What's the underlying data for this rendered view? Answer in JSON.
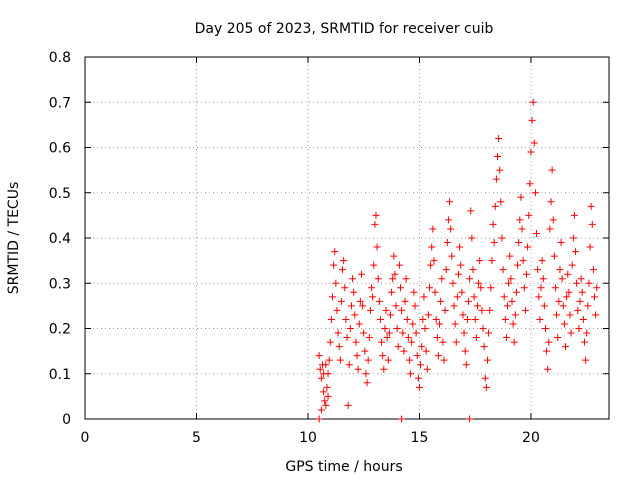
{
  "chart_data": {
    "type": "scatter",
    "title": "Day 205 of 2023, SRMTID for receiver cuib",
    "xlabel": "GPS time / hours",
    "ylabel": "SRMTID / TECUs",
    "xlim": [
      0,
      23.5
    ],
    "ylim": [
      0,
      0.8
    ],
    "x_ticks": [
      0,
      5,
      10,
      15,
      20
    ],
    "x_tick_labels": [
      "0",
      "5",
      "10",
      "15",
      "20"
    ],
    "y_ticks": [
      0,
      0.1,
      0.2,
      0.3,
      0.4,
      0.5,
      0.6,
      0.7,
      0.8
    ],
    "y_tick_labels": [
      "0",
      "0.1",
      "0.2",
      "0.3",
      "0.4",
      "0.5",
      "0.6",
      "0.7",
      "0.8"
    ],
    "grid": true,
    "marker": "+",
    "color": "#ff0000",
    "series": [
      {
        "name": "SRMTID",
        "points": [
          [
            10.5,
            0.14
          ],
          [
            10.55,
            0.11
          ],
          [
            10.6,
            0.09
          ],
          [
            10.65,
            0.12
          ],
          [
            10.7,
            0.06
          ],
          [
            10.75,
            0.04
          ],
          [
            10.8,
            0.03
          ],
          [
            10.85,
            0.07
          ],
          [
            10.9,
            0.1
          ],
          [
            10.95,
            0.13
          ],
          [
            10.6,
            0.02
          ],
          [
            10.7,
            0.1
          ],
          [
            10.8,
            0.12
          ],
          [
            10.9,
            0.05
          ],
          [
            11.0,
            0.17
          ],
          [
            11.05,
            0.22
          ],
          [
            11.1,
            0.27
          ],
          [
            11.15,
            0.34
          ],
          [
            11.2,
            0.37
          ],
          [
            11.25,
            0.3
          ],
          [
            11.3,
            0.24
          ],
          [
            11.35,
            0.19
          ],
          [
            11.4,
            0.16
          ],
          [
            11.45,
            0.13
          ],
          [
            11.5,
            0.26
          ],
          [
            11.55,
            0.33
          ],
          [
            11.6,
            0.35
          ],
          [
            11.65,
            0.29
          ],
          [
            11.7,
            0.22
          ],
          [
            11.75,
            0.18
          ],
          [
            11.8,
            0.03
          ],
          [
            11.85,
            0.12
          ],
          [
            11.9,
            0.2
          ],
          [
            11.95,
            0.25
          ],
          [
            12.0,
            0.31
          ],
          [
            12.05,
            0.28
          ],
          [
            12.1,
            0.23
          ],
          [
            12.15,
            0.17
          ],
          [
            12.2,
            0.14
          ],
          [
            12.25,
            0.11
          ],
          [
            12.3,
            0.21
          ],
          [
            12.35,
            0.26
          ],
          [
            12.4,
            0.32
          ],
          [
            12.45,
            0.25
          ],
          [
            12.5,
            0.19
          ],
          [
            12.55,
            0.15
          ],
          [
            12.6,
            0.1
          ],
          [
            12.65,
            0.08
          ],
          [
            12.7,
            0.13
          ],
          [
            12.75,
            0.18
          ],
          [
            12.8,
            0.24
          ],
          [
            12.85,
            0.29
          ],
          [
            12.9,
            0.27
          ],
          [
            12.95,
            0.34
          ],
          [
            13.0,
            0.43
          ],
          [
            13.05,
            0.45
          ],
          [
            13.1,
            0.38
          ],
          [
            13.15,
            0.31
          ],
          [
            13.2,
            0.26
          ],
          [
            13.25,
            0.22
          ],
          [
            13.3,
            0.17
          ],
          [
            13.35,
            0.14
          ],
          [
            13.4,
            0.11
          ],
          [
            13.45,
            0.2
          ],
          [
            13.5,
            0.24
          ],
          [
            13.55,
            0.18
          ],
          [
            13.6,
            0.13
          ],
          [
            13.65,
            0.19
          ],
          [
            13.7,
            0.23
          ],
          [
            13.75,
            0.28
          ],
          [
            13.8,
            0.31
          ],
          [
            13.85,
            0.36
          ],
          [
            13.9,
            0.32
          ],
          [
            13.95,
            0.25
          ],
          [
            14.0,
            0.2
          ],
          [
            14.05,
            0.16
          ],
          [
            14.1,
            0.34
          ],
          [
            14.15,
            0.29
          ],
          [
            14.2,
            0.24
          ],
          [
            14.25,
            0.19
          ],
          [
            14.3,
            0.15
          ],
          [
            14.35,
            0.26
          ],
          [
            14.4,
            0.31
          ],
          [
            14.45,
            0.22
          ],
          [
            14.5,
            0.18
          ],
          [
            14.55,
            0.13
          ],
          [
            14.6,
            0.1
          ],
          [
            14.65,
            0.17
          ],
          [
            14.7,
            0.21
          ],
          [
            14.75,
            0.28
          ],
          [
            14.8,
            0.25
          ],
          [
            14.85,
            0.19
          ],
          [
            14.9,
            0.14
          ],
          [
            14.95,
            0.09
          ],
          [
            15.0,
            0.07
          ],
          [
            15.05,
            0.12
          ],
          [
            15.1,
            0.16
          ],
          [
            15.15,
            0.22
          ],
          [
            15.2,
            0.27
          ],
          [
            15.25,
            0.2
          ],
          [
            15.3,
            0.15
          ],
          [
            15.35,
            0.11
          ],
          [
            15.4,
            0.23
          ],
          [
            15.45,
            0.29
          ],
          [
            15.5,
            0.34
          ],
          [
            15.55,
            0.38
          ],
          [
            15.6,
            0.42
          ],
          [
            15.65,
            0.35
          ],
          [
            15.7,
            0.28
          ],
          [
            15.75,
            0.22
          ],
          [
            15.8,
            0.18
          ],
          [
            15.85,
            0.14
          ],
          [
            15.9,
            0.21
          ],
          [
            15.95,
            0.26
          ],
          [
            16.0,
            0.31
          ],
          [
            16.05,
            0.17
          ],
          [
            16.1,
            0.13
          ],
          [
            16.15,
            0.24
          ],
          [
            16.2,
            0.33
          ],
          [
            16.25,
            0.39
          ],
          [
            16.3,
            0.44
          ],
          [
            16.35,
            0.48
          ],
          [
            16.4,
            0.42
          ],
          [
            16.45,
            0.36
          ],
          [
            16.5,
            0.3
          ],
          [
            16.55,
            0.25
          ],
          [
            16.6,
            0.21
          ],
          [
            16.65,
            0.17
          ],
          [
            16.7,
            0.27
          ],
          [
            16.75,
            0.32
          ],
          [
            16.8,
            0.38
          ],
          [
            16.85,
            0.34
          ],
          [
            16.9,
            0.28
          ],
          [
            16.95,
            0.23
          ],
          [
            17.0,
            0.19
          ],
          [
            17.05,
            0.15
          ],
          [
            17.1,
            0.12
          ],
          [
            17.15,
            0.22
          ],
          [
            17.2,
            0.26
          ],
          [
            17.25,
            0.31
          ],
          [
            17.3,
            0.46
          ],
          [
            17.35,
            0.4
          ],
          [
            17.4,
            0.33
          ],
          [
            17.45,
            0.27
          ],
          [
            17.5,
            0.22
          ],
          [
            17.55,
            0.18
          ],
          [
            17.6,
            0.25
          ],
          [
            17.65,
            0.3
          ],
          [
            17.7,
            0.35
          ],
          [
            17.75,
            0.29
          ],
          [
            17.8,
            0.24
          ],
          [
            17.85,
            0.2
          ],
          [
            17.9,
            0.16
          ],
          [
            17.95,
            0.09
          ],
          [
            18.0,
            0.07
          ],
          [
            18.05,
            0.13
          ],
          [
            18.1,
            0.19
          ],
          [
            18.15,
            0.24
          ],
          [
            18.2,
            0.29
          ],
          [
            18.25,
            0.35
          ],
          [
            18.3,
            0.43
          ],
          [
            18.35,
            0.39
          ],
          [
            18.4,
            0.47
          ],
          [
            18.45,
            0.53
          ],
          [
            18.5,
            0.58
          ],
          [
            18.55,
            0.62
          ],
          [
            18.6,
            0.55
          ],
          [
            18.65,
            0.48
          ],
          [
            18.7,
            0.4
          ],
          [
            18.75,
            0.33
          ],
          [
            18.8,
            0.27
          ],
          [
            18.85,
            0.22
          ],
          [
            18.9,
            0.18
          ],
          [
            18.95,
            0.25
          ],
          [
            19.0,
            0.3
          ],
          [
            19.05,
            0.36
          ],
          [
            19.1,
            0.31
          ],
          [
            19.15,
            0.26
          ],
          [
            19.2,
            0.21
          ],
          [
            19.25,
            0.17
          ],
          [
            19.3,
            0.23
          ],
          [
            19.35,
            0.28
          ],
          [
            19.4,
            0.34
          ],
          [
            19.45,
            0.39
          ],
          [
            19.5,
            0.44
          ],
          [
            19.55,
            0.49
          ],
          [
            19.6,
            0.42
          ],
          [
            19.65,
            0.35
          ],
          [
            19.7,
            0.29
          ],
          [
            19.75,
            0.24
          ],
          [
            19.8,
            0.32
          ],
          [
            19.85,
            0.38
          ],
          [
            19.9,
            0.45
          ],
          [
            19.95,
            0.52
          ],
          [
            20.0,
            0.59
          ],
          [
            20.05,
            0.66
          ],
          [
            20.1,
            0.7
          ],
          [
            20.15,
            0.61
          ],
          [
            20.2,
            0.5
          ],
          [
            20.25,
            0.41
          ],
          [
            20.3,
            0.33
          ],
          [
            20.35,
            0.27
          ],
          [
            20.4,
            0.22
          ],
          [
            20.45,
            0.29
          ],
          [
            20.5,
            0.35
          ],
          [
            20.55,
            0.31
          ],
          [
            20.6,
            0.25
          ],
          [
            20.65,
            0.2
          ],
          [
            20.7,
            0.15
          ],
          [
            20.75,
            0.11
          ],
          [
            20.8,
            0.17
          ],
          [
            20.85,
            0.42
          ],
          [
            20.9,
            0.48
          ],
          [
            20.95,
            0.55
          ],
          [
            21.0,
            0.44
          ],
          [
            21.05,
            0.36
          ],
          [
            21.1,
            0.29
          ],
          [
            21.15,
            0.23
          ],
          [
            21.2,
            0.18
          ],
          [
            21.25,
            0.26
          ],
          [
            21.3,
            0.33
          ],
          [
            21.35,
            0.39
          ],
          [
            21.4,
            0.31
          ],
          [
            21.45,
            0.25
          ],
          [
            21.5,
            0.21
          ],
          [
            21.55,
            0.16
          ],
          [
            21.6,
            0.27
          ],
          [
            21.65,
            0.32
          ],
          [
            21.7,
            0.28
          ],
          [
            21.75,
            0.23
          ],
          [
            21.8,
            0.19
          ],
          [
            21.85,
            0.34
          ],
          [
            21.9,
            0.4
          ],
          [
            21.95,
            0.45
          ],
          [
            22.0,
            0.37
          ],
          [
            22.05,
            0.3
          ],
          [
            22.1,
            0.24
          ],
          [
            22.15,
            0.2
          ],
          [
            22.2,
            0.26
          ],
          [
            22.25,
            0.31
          ],
          [
            22.3,
            0.28
          ],
          [
            22.35,
            0.22
          ],
          [
            22.4,
            0.17
          ],
          [
            22.45,
            0.13
          ],
          [
            22.5,
            0.19
          ],
          [
            22.55,
            0.25
          ],
          [
            22.6,
            0.3
          ],
          [
            22.65,
            0.38
          ],
          [
            22.7,
            0.47
          ],
          [
            22.75,
            0.43
          ],
          [
            22.8,
            0.33
          ],
          [
            22.85,
            0.27
          ],
          [
            22.9,
            0.23
          ],
          [
            22.95,
            0.29
          ],
          [
            10.5,
            0.0
          ],
          [
            14.2,
            0.0
          ],
          [
            17.25,
            0.0
          ]
        ]
      }
    ]
  }
}
